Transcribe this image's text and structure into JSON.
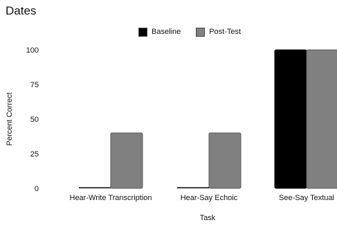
{
  "chart_data": {
    "type": "bar",
    "title": "Dates",
    "xlabel": "Task",
    "ylabel": "Percent Correct",
    "ylim": [
      0,
      100
    ],
    "yticks": [
      0,
      25,
      50,
      75,
      100
    ],
    "grid": false,
    "legend_position": "top-center",
    "categories": [
      "Hear-Write Transcription",
      "Hear-Say Echoic",
      "See-Say Textual"
    ],
    "series": [
      {
        "name": "Baseline",
        "color": "#000000",
        "values": [
          0,
          0,
          100
        ]
      },
      {
        "name": "Post-Test",
        "color": "#808080",
        "values": [
          40,
          40,
          100
        ]
      }
    ]
  }
}
